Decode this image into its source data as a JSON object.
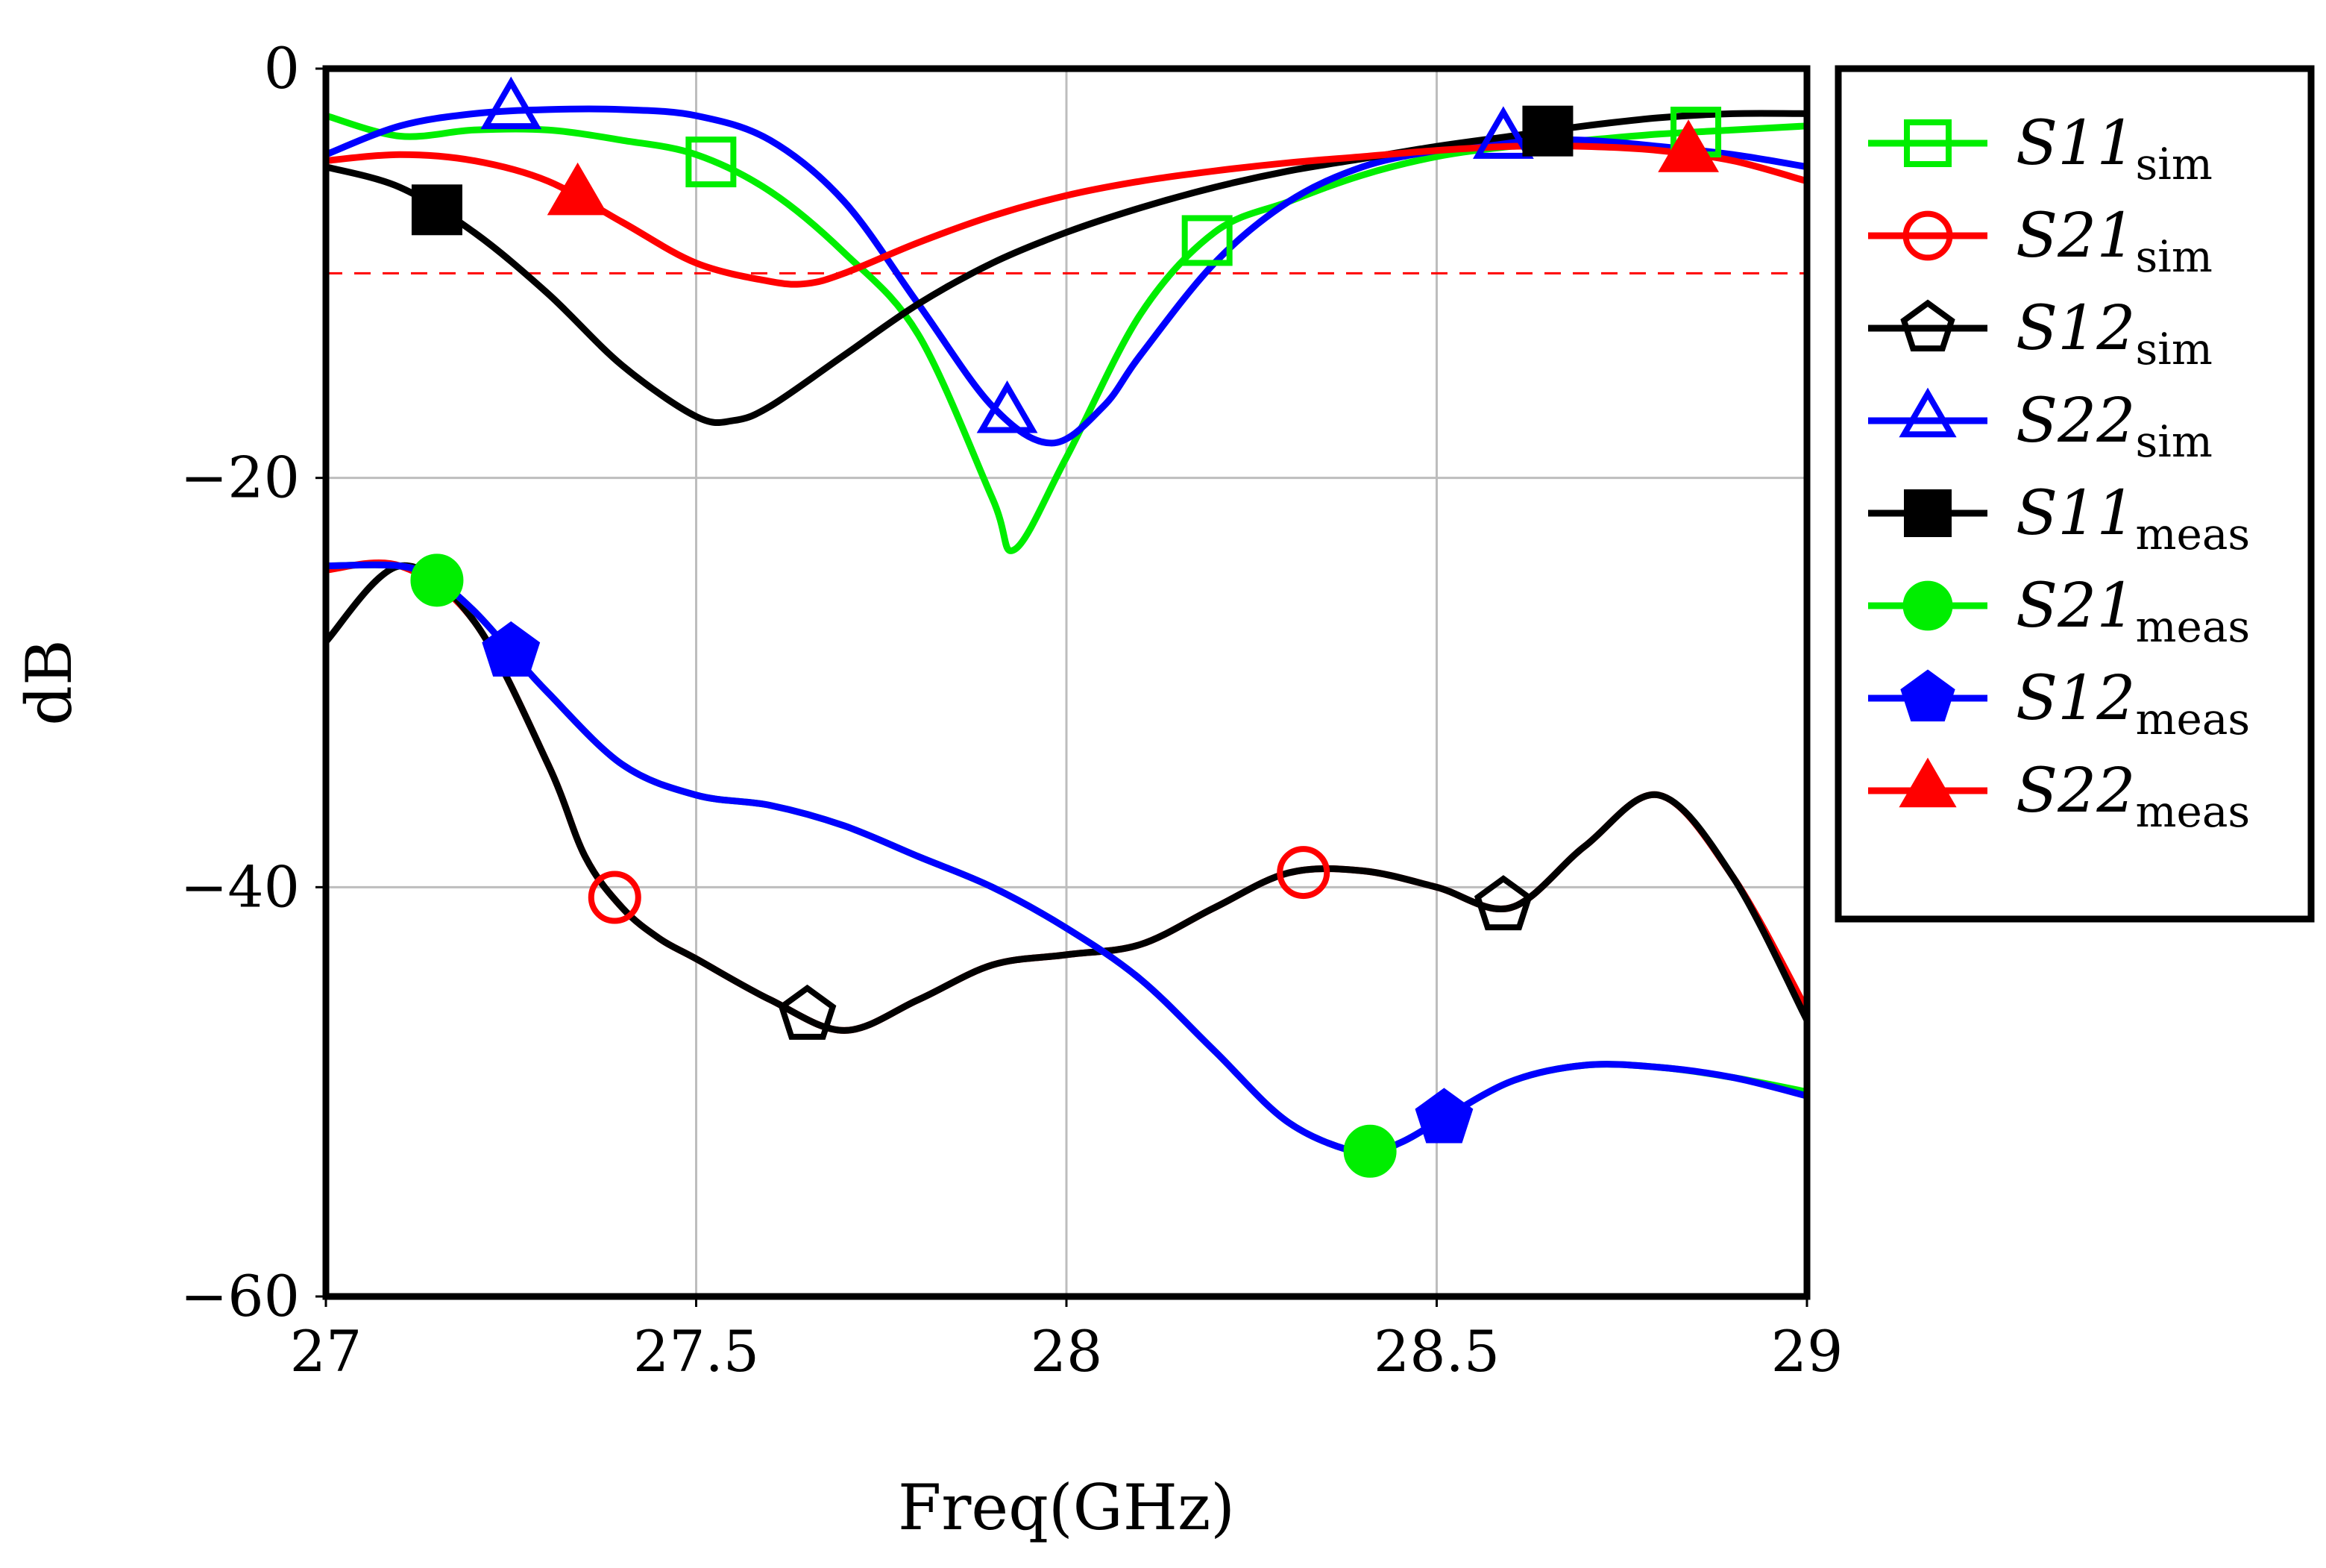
{
  "chart_data": {
    "type": "line",
    "xlabel": "Freq(GHz)",
    "ylabel": "dB",
    "xlim": [
      27,
      29
    ],
    "ylim": [
      -60,
      0
    ],
    "xticks": [
      27,
      27.5,
      28,
      28.5,
      29
    ],
    "xtick_labels": [
      "27",
      "27.5",
      "28",
      "28.5",
      "29"
    ],
    "yticks": [
      0,
      -20,
      -40,
      -60
    ],
    "ytick_labels": [
      "0",
      "−20",
      "−40",
      "−60"
    ],
    "grid": true,
    "legend_position": "outside-right-top",
    "reference_line": {
      "y": -10,
      "color": "#ff0000",
      "style": "dashed"
    },
    "series": [
      {
        "name": "S11",
        "subscript": "sim",
        "color": "#00ee00",
        "marker": "square",
        "filled": false,
        "x": [
          27.0,
          27.1,
          27.2,
          27.3,
          27.4,
          27.5,
          27.6,
          27.7,
          27.8,
          27.9,
          27.93,
          28.0,
          28.1,
          28.2,
          28.3,
          28.4,
          28.5,
          28.6,
          28.7,
          28.8,
          28.9,
          29.0
        ],
        "y": [
          -2.3,
          -3.3,
          -3.0,
          -3.0,
          -3.5,
          -4.2,
          -6.0,
          -9.0,
          -13.0,
          -21.0,
          -23.5,
          -19.0,
          -12.0,
          -8.0,
          -6.5,
          -5.2,
          -4.3,
          -3.8,
          -3.5,
          -3.2,
          -3.0,
          -2.8
        ],
        "markers_x": [
          27.52,
          28.19,
          28.85
        ]
      },
      {
        "name": "S21",
        "subscript": "sim",
        "color": "#ff0000",
        "marker": "circle",
        "filled": false,
        "x": [
          27.0,
          27.1,
          27.2,
          27.3,
          27.35,
          27.4,
          27.45,
          27.5,
          27.6,
          27.7,
          27.8,
          27.9,
          28.0,
          28.1,
          28.2,
          28.3,
          28.4,
          28.5,
          28.6,
          28.7,
          28.8,
          28.9,
          29.0
        ],
        "y": [
          -24.5,
          -24.3,
          -27.0,
          -34.0,
          -38.5,
          -41.0,
          -42.5,
          -43.5,
          -45.5,
          -47.0,
          -45.5,
          -43.8,
          -43.3,
          -42.8,
          -41.0,
          -39.3,
          -39.2,
          -40.0,
          -41.0,
          -38.0,
          -35.5,
          -39.5,
          -46.0
        ],
        "markers_x": [
          27.39,
          28.32
        ]
      },
      {
        "name": "S12",
        "subscript": "sim",
        "color": "#000000",
        "marker": "pentagon",
        "filled": false,
        "x": [
          27.0,
          27.1,
          27.2,
          27.3,
          27.35,
          27.4,
          27.45,
          27.5,
          27.6,
          27.7,
          27.8,
          27.9,
          28.0,
          28.1,
          28.2,
          28.3,
          28.4,
          28.5,
          28.6,
          28.7,
          28.8,
          28.9,
          29.0
        ],
        "y": [
          -28.0,
          -24.3,
          -27.0,
          -34.0,
          -38.5,
          -41.0,
          -42.5,
          -43.5,
          -45.5,
          -47.0,
          -45.5,
          -43.8,
          -43.3,
          -42.8,
          -41.0,
          -39.3,
          -39.2,
          -40.0,
          -41.0,
          -38.0,
          -35.5,
          -39.5,
          -46.5
        ],
        "markers_x": [
          27.65,
          28.59
        ]
      },
      {
        "name": "S22",
        "subscript": "sim",
        "color": "#0000ff",
        "marker": "triangle",
        "filled": false,
        "x": [
          27.0,
          27.1,
          27.2,
          27.3,
          27.4,
          27.5,
          27.6,
          27.7,
          27.8,
          27.9,
          27.98,
          28.05,
          28.1,
          28.2,
          28.3,
          28.4,
          28.5,
          28.6,
          28.7,
          28.8,
          28.9,
          29.0
        ],
        "y": [
          -4.2,
          -2.8,
          -2.2,
          -2.0,
          -2.0,
          -2.3,
          -3.5,
          -6.5,
          -11.5,
          -16.5,
          -18.3,
          -16.5,
          -14.0,
          -9.5,
          -6.5,
          -4.8,
          -4.0,
          -3.5,
          -3.5,
          -3.8,
          -4.2,
          -4.8
        ],
        "markers_x": [
          27.25,
          27.92,
          28.59
        ]
      },
      {
        "name": "S11",
        "subscript": "meas",
        "color": "#000000",
        "marker": "square",
        "filled": true,
        "x": [
          27.0,
          27.1,
          27.2,
          27.3,
          27.4,
          27.5,
          27.55,
          27.6,
          27.7,
          27.8,
          27.9,
          28.0,
          28.1,
          28.2,
          28.3,
          28.4,
          28.5,
          28.6,
          28.7,
          28.8,
          28.9,
          29.0
        ],
        "y": [
          -4.8,
          -5.8,
          -8.0,
          -11.0,
          -14.5,
          -17.0,
          -17.2,
          -16.5,
          -14.0,
          -11.5,
          -9.5,
          -8.0,
          -6.8,
          -5.8,
          -5.0,
          -4.4,
          -3.8,
          -3.3,
          -2.8,
          -2.4,
          -2.2,
          -2.2
        ],
        "markers_x": [
          27.15,
          28.65
        ]
      },
      {
        "name": "S21",
        "subscript": "meas",
        "color": "#00ee00",
        "marker": "circle",
        "filled": true,
        "x": [
          27.0,
          27.1,
          27.15,
          27.2,
          27.25,
          27.3,
          27.4,
          27.5,
          27.6,
          27.7,
          27.8,
          27.9,
          28.0,
          28.1,
          28.2,
          28.3,
          28.4,
          28.45,
          28.5,
          28.6,
          28.7,
          28.8,
          28.9,
          29.0
        ],
        "y": [
          -24.3,
          -24.3,
          -25.0,
          -26.5,
          -28.5,
          -30.5,
          -34.0,
          -35.5,
          -36.0,
          -37.0,
          -38.5,
          -40.0,
          -42.0,
          -44.5,
          -48.0,
          -51.5,
          -53.0,
          -52.5,
          -51.5,
          -49.5,
          -48.7,
          -48.8,
          -49.3,
          -50.0
        ],
        "markers_x": [
          27.15,
          28.41
        ]
      },
      {
        "name": "S12",
        "subscript": "meas",
        "color": "#0000ff",
        "marker": "pentagon",
        "filled": true,
        "x": [
          27.0,
          27.1,
          27.15,
          27.2,
          27.25,
          27.3,
          27.4,
          27.5,
          27.6,
          27.7,
          27.8,
          27.9,
          28.0,
          28.1,
          28.2,
          28.3,
          28.4,
          28.45,
          28.5,
          28.6,
          28.7,
          28.8,
          28.9,
          29.0
        ],
        "y": [
          -24.3,
          -24.3,
          -25.0,
          -26.5,
          -28.5,
          -30.5,
          -34.0,
          -35.5,
          -36.0,
          -37.0,
          -38.5,
          -40.0,
          -42.0,
          -44.5,
          -48.0,
          -51.5,
          -53.0,
          -52.5,
          -51.5,
          -49.5,
          -48.7,
          -48.8,
          -49.3,
          -50.2
        ],
        "markers_x": [
          27.25,
          28.51
        ]
      },
      {
        "name": "S22",
        "subscript": "meas",
        "color": "#ff0000",
        "marker": "triangle",
        "filled": true,
        "x": [
          27.0,
          27.1,
          27.2,
          27.3,
          27.4,
          27.5,
          27.6,
          27.65,
          27.7,
          27.8,
          27.9,
          28.0,
          28.1,
          28.2,
          28.3,
          28.4,
          28.5,
          28.6,
          28.7,
          28.8,
          28.9,
          29.0
        ],
        "y": [
          -4.5,
          -4.2,
          -4.5,
          -5.5,
          -7.5,
          -9.5,
          -10.4,
          -10.5,
          -10.0,
          -8.5,
          -7.2,
          -6.2,
          -5.5,
          -5.0,
          -4.6,
          -4.3,
          -4.0,
          -3.8,
          -3.8,
          -4.0,
          -4.5,
          -5.5
        ],
        "markers_x": [
          27.34,
          28.84
        ]
      }
    ]
  }
}
